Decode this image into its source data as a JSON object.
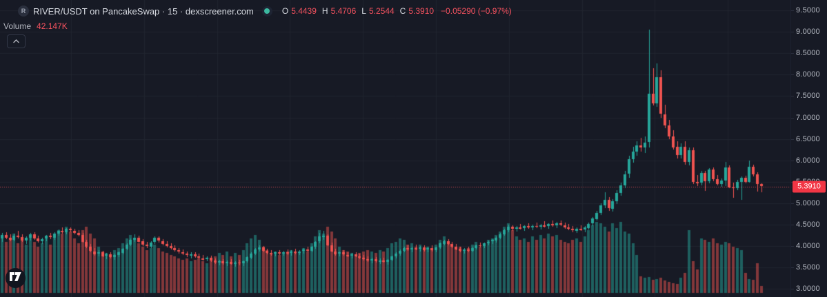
{
  "header": {
    "symbol_badge": "R",
    "title": "RIVER/USDT on PancakeSwap · 15 · dexscreener.com",
    "ohlc": {
      "open_label": "O",
      "open": "5.4439",
      "high_label": "H",
      "high": "5.4706",
      "low_label": "L",
      "low": "5.2544",
      "close_label": "C",
      "close": "5.3910",
      "change": "−0.05290 (−0.97%)"
    },
    "volume_label": "Volume",
    "volume_value": "42.147K"
  },
  "price_axis": {
    "last_price_label": "5.3910"
  },
  "colors": {
    "background": "#171a25",
    "grid": "#20242f",
    "up": "#26a69a",
    "down": "#ef5350",
    "axis_text": "#b6bac3",
    "value_red": "#f7525f",
    "price_label_bg": "#f23645",
    "price_line": "#c94a52"
  },
  "chart_data": {
    "type": "candlestick",
    "title": "RIVER/USDT on PancakeSwap · 15 · dexscreener.com",
    "interval_minutes": 15,
    "y_axis_ticks": [
      9.5,
      9.0,
      8.5,
      8.0,
      7.5,
      7.0,
      6.5,
      6.0,
      5.5,
      5.0,
      4.5,
      4.0,
      3.5,
      3.0
    ],
    "price_line_value": 5.391,
    "last_volume_k": 42.147,
    "volume_unit": "K",
    "candle_columns": [
      "open",
      "high",
      "low",
      "close",
      "volume_k"
    ],
    "candles": [
      [
        4.18,
        4.3,
        4.1,
        4.26,
        340
      ],
      [
        4.26,
        4.33,
        4.17,
        4.2,
        310
      ],
      [
        4.2,
        4.27,
        4.12,
        4.15,
        330
      ],
      [
        4.15,
        4.29,
        4.11,
        4.25,
        360
      ],
      [
        4.25,
        4.35,
        4.18,
        4.21,
        300
      ],
      [
        4.21,
        4.28,
        4.1,
        4.13,
        320
      ],
      [
        4.13,
        4.22,
        4.05,
        4.19,
        290
      ],
      [
        4.19,
        4.31,
        4.13,
        4.27,
        350
      ],
      [
        4.27,
        4.33,
        4.15,
        4.18,
        310
      ],
      [
        4.18,
        4.25,
        4.08,
        4.12,
        280
      ],
      [
        4.12,
        4.2,
        4.05,
        4.17,
        300
      ],
      [
        4.17,
        4.26,
        4.12,
        4.24,
        330
      ],
      [
        4.24,
        4.3,
        4.16,
        4.2,
        290
      ],
      [
        4.2,
        4.32,
        4.15,
        4.29,
        340
      ],
      [
        4.29,
        4.38,
        4.24,
        4.35,
        380
      ],
      [
        4.35,
        4.44,
        4.29,
        4.32,
        360
      ],
      [
        4.32,
        4.42,
        4.27,
        4.4,
        400
      ],
      [
        4.4,
        4.44,
        4.33,
        4.36,
        370
      ],
      [
        4.36,
        4.41,
        4.28,
        4.31,
        330
      ],
      [
        4.31,
        4.37,
        4.22,
        4.26,
        300
      ],
      [
        4.26,
        4.3,
        4.08,
        4.1,
        380
      ],
      [
        4.1,
        4.15,
        3.95,
        3.98,
        400
      ],
      [
        3.98,
        4.05,
        3.85,
        3.88,
        360
      ],
      [
        3.88,
        3.95,
        3.78,
        3.82,
        330
      ],
      [
        3.82,
        3.9,
        3.76,
        3.86,
        280
      ],
      [
        3.86,
        3.89,
        3.74,
        3.77,
        250
      ],
      [
        3.77,
        3.84,
        3.7,
        3.81,
        240
      ],
      [
        3.81,
        3.86,
        3.72,
        3.74,
        230
      ],
      [
        3.74,
        3.82,
        3.68,
        3.79,
        260
      ],
      [
        3.79,
        3.88,
        3.74,
        3.85,
        270
      ],
      [
        3.85,
        3.96,
        3.81,
        3.94,
        300
      ],
      [
        3.94,
        4.06,
        3.9,
        4.04,
        330
      ],
      [
        4.04,
        4.18,
        4.0,
        4.15,
        350
      ],
      [
        4.15,
        4.27,
        4.1,
        4.2,
        320
      ],
      [
        4.2,
        4.24,
        4.08,
        4.11,
        300
      ],
      [
        4.11,
        4.16,
        4.0,
        4.03,
        280
      ],
      [
        4.03,
        4.1,
        3.96,
        3.99,
        260
      ],
      [
        3.99,
        4.12,
        3.95,
        4.09,
        270
      ],
      [
        4.09,
        4.22,
        4.05,
        4.19,
        290
      ],
      [
        4.19,
        4.23,
        4.08,
        4.12,
        270
      ],
      [
        4.12,
        4.17,
        4.02,
        4.05,
        250
      ],
      [
        4.05,
        4.11,
        3.97,
        4.0,
        240
      ],
      [
        4.0,
        4.06,
        3.92,
        3.95,
        230
      ],
      [
        3.95,
        4.01,
        3.87,
        3.9,
        220
      ],
      [
        3.9,
        3.96,
        3.83,
        3.86,
        210
      ],
      [
        3.86,
        3.92,
        3.79,
        3.82,
        200
      ],
      [
        3.82,
        3.88,
        3.75,
        3.78,
        210
      ],
      [
        3.78,
        3.85,
        3.72,
        3.81,
        190
      ],
      [
        3.81,
        3.86,
        3.73,
        3.76,
        200
      ],
      [
        3.76,
        3.82,
        3.69,
        3.72,
        210
      ],
      [
        3.72,
        3.79,
        3.66,
        3.69,
        190
      ],
      [
        3.69,
        3.76,
        3.64,
        3.73,
        180
      ],
      [
        3.73,
        3.77,
        3.63,
        3.66,
        200
      ],
      [
        3.66,
        3.72,
        3.58,
        3.61,
        220
      ],
      [
        3.61,
        3.68,
        3.55,
        3.64,
        240
      ],
      [
        3.64,
        3.7,
        3.57,
        3.59,
        230
      ],
      [
        3.59,
        3.66,
        3.53,
        3.63,
        250
      ],
      [
        3.63,
        3.69,
        3.56,
        3.58,
        220
      ],
      [
        3.58,
        3.65,
        3.52,
        3.62,
        240
      ],
      [
        3.62,
        3.68,
        3.55,
        3.6,
        230
      ],
      [
        3.6,
        3.67,
        3.54,
        3.65,
        260
      ],
      [
        3.65,
        3.76,
        3.61,
        3.74,
        300
      ],
      [
        3.74,
        3.85,
        3.7,
        3.83,
        330
      ],
      [
        3.83,
        3.95,
        3.79,
        3.92,
        350
      ],
      [
        3.92,
        4.02,
        3.88,
        3.97,
        320
      ],
      [
        3.97,
        4.0,
        3.86,
        3.89,
        280
      ],
      [
        3.89,
        3.94,
        3.81,
        3.84,
        260
      ],
      [
        3.84,
        3.9,
        3.78,
        3.81,
        240
      ],
      [
        3.81,
        3.88,
        3.76,
        3.85,
        250
      ],
      [
        3.85,
        3.91,
        3.79,
        3.82,
        230
      ],
      [
        3.82,
        3.89,
        3.77,
        3.86,
        240
      ],
      [
        3.86,
        3.92,
        3.8,
        3.83,
        250
      ],
      [
        3.83,
        3.9,
        3.78,
        3.87,
        260
      ],
      [
        3.87,
        3.93,
        3.81,
        3.84,
        240
      ],
      [
        3.84,
        3.91,
        3.79,
        3.88,
        250
      ],
      [
        3.88,
        3.95,
        3.83,
        3.92,
        270
      ],
      [
        3.92,
        3.98,
        3.86,
        3.89,
        250
      ],
      [
        3.89,
        4.0,
        3.85,
        3.98,
        300
      ],
      [
        3.98,
        4.12,
        3.94,
        4.1,
        340
      ],
      [
        4.1,
        4.3,
        4.06,
        4.22,
        380
      ],
      [
        4.22,
        4.35,
        4.15,
        4.25,
        360
      ],
      [
        4.25,
        4.28,
        4.0,
        4.02,
        400
      ],
      [
        4.02,
        4.08,
        3.85,
        3.88,
        370
      ],
      [
        3.88,
        3.94,
        3.78,
        3.81,
        330
      ],
      [
        3.81,
        3.88,
        3.76,
        3.85,
        280
      ],
      [
        3.85,
        3.9,
        3.78,
        3.8,
        260
      ],
      [
        3.8,
        3.86,
        3.74,
        3.77,
        250
      ],
      [
        3.77,
        3.84,
        3.72,
        3.81,
        240
      ],
      [
        3.81,
        3.86,
        3.74,
        3.76,
        230
      ],
      [
        3.76,
        3.82,
        3.7,
        3.73,
        240
      ],
      [
        3.73,
        3.8,
        3.67,
        3.7,
        250
      ],
      [
        3.7,
        3.76,
        3.63,
        3.66,
        260
      ],
      [
        3.66,
        3.73,
        3.6,
        3.69,
        250
      ],
      [
        3.69,
        3.74,
        3.62,
        3.64,
        240
      ],
      [
        3.64,
        3.71,
        3.58,
        3.67,
        260
      ],
      [
        3.67,
        3.73,
        3.61,
        3.63,
        250
      ],
      [
        3.63,
        3.7,
        3.57,
        3.68,
        270
      ],
      [
        3.68,
        3.78,
        3.64,
        3.76,
        300
      ],
      [
        3.76,
        3.85,
        3.72,
        3.82,
        310
      ],
      [
        3.82,
        3.92,
        3.78,
        3.89,
        330
      ],
      [
        3.89,
        3.99,
        3.85,
        3.95,
        320
      ],
      [
        3.95,
        4.02,
        3.89,
        3.92,
        290
      ],
      [
        3.92,
        3.99,
        3.86,
        3.96,
        300
      ],
      [
        3.96,
        4.03,
        3.9,
        3.93,
        280
      ],
      [
        3.93,
        4.0,
        3.87,
        3.97,
        290
      ],
      [
        3.97,
        4.02,
        3.88,
        3.91,
        270
      ],
      [
        3.91,
        3.98,
        3.85,
        3.95,
        280
      ],
      [
        3.95,
        4.01,
        3.88,
        3.9,
        260
      ],
      [
        3.9,
        3.99,
        3.86,
        3.97,
        290
      ],
      [
        3.97,
        4.08,
        3.93,
        4.06,
        320
      ],
      [
        4.06,
        4.15,
        4.01,
        4.12,
        340
      ],
      [
        4.12,
        4.16,
        4.02,
        4.05,
        310
      ],
      [
        4.05,
        4.1,
        3.96,
        3.99,
        290
      ],
      [
        3.99,
        4.05,
        3.9,
        3.93,
        270
      ],
      [
        3.93,
        3.99,
        3.85,
        3.88,
        280
      ],
      [
        3.88,
        3.95,
        3.82,
        3.92,
        260
      ],
      [
        3.92,
        3.99,
        3.86,
        3.89,
        270
      ],
      [
        3.89,
        3.98,
        3.85,
        3.96,
        290
      ],
      [
        3.96,
        4.04,
        3.92,
        4.02,
        310
      ],
      [
        4.02,
        4.09,
        3.97,
        4.0,
        280
      ],
      [
        4.0,
        4.08,
        3.95,
        4.06,
        300
      ],
      [
        4.06,
        4.13,
        4.01,
        4.1,
        320
      ],
      [
        4.1,
        4.17,
        4.05,
        4.14,
        330
      ],
      [
        4.14,
        4.22,
        4.09,
        4.2,
        350
      ],
      [
        4.2,
        4.3,
        4.16,
        4.28,
        370
      ],
      [
        4.28,
        4.4,
        4.24,
        4.37,
        400
      ],
      [
        4.37,
        4.5,
        4.33,
        4.45,
        420
      ],
      [
        4.45,
        4.49,
        4.36,
        4.4,
        380
      ],
      [
        4.4,
        4.47,
        4.34,
        4.44,
        340
      ],
      [
        4.44,
        4.52,
        4.38,
        4.41,
        320
      ],
      [
        4.41,
        4.49,
        4.36,
        4.46,
        330
      ],
      [
        4.46,
        4.53,
        4.4,
        4.43,
        310
      ],
      [
        4.43,
        4.5,
        4.37,
        4.47,
        340
      ],
      [
        4.47,
        4.55,
        4.42,
        4.45,
        320
      ],
      [
        4.45,
        4.52,
        4.39,
        4.49,
        350
      ],
      [
        4.49,
        4.58,
        4.44,
        4.46,
        330
      ],
      [
        4.46,
        4.54,
        4.41,
        4.51,
        360
      ],
      [
        4.51,
        4.6,
        4.45,
        4.48,
        340
      ],
      [
        4.48,
        4.56,
        4.42,
        4.53,
        350
      ],
      [
        4.53,
        4.59,
        4.46,
        4.49,
        320
      ],
      [
        4.49,
        4.55,
        4.41,
        4.44,
        310
      ],
      [
        4.44,
        4.51,
        4.37,
        4.4,
        300
      ],
      [
        4.4,
        4.47,
        4.33,
        4.36,
        320
      ],
      [
        4.36,
        4.44,
        4.3,
        4.41,
        330
      ],
      [
        4.41,
        4.48,
        4.35,
        4.38,
        310
      ],
      [
        4.38,
        4.46,
        4.32,
        4.43,
        340
      ],
      [
        4.43,
        4.55,
        4.38,
        4.52,
        380
      ],
      [
        4.52,
        4.68,
        4.47,
        4.64,
        410
      ],
      [
        4.64,
        4.82,
        4.59,
        4.78,
        430
      ],
      [
        4.78,
        5.0,
        4.72,
        4.95,
        420
      ],
      [
        4.95,
        5.26,
        4.88,
        5.08,
        400
      ],
      [
        5.08,
        5.15,
        4.82,
        4.88,
        370
      ],
      [
        4.88,
        5.1,
        4.8,
        5.05,
        420
      ],
      [
        5.05,
        5.3,
        4.98,
        5.24,
        390
      ],
      [
        5.24,
        5.48,
        5.18,
        5.42,
        430
      ],
      [
        5.42,
        5.75,
        5.36,
        5.68,
        370
      ],
      [
        5.68,
        6.1,
        5.6,
        6.02,
        360
      ],
      [
        6.02,
        6.32,
        5.95,
        6.2,
        300
      ],
      [
        6.2,
        6.45,
        6.1,
        6.35,
        230
      ],
      [
        6.35,
        6.52,
        6.2,
        6.3,
        100
      ],
      [
        6.3,
        6.55,
        6.18,
        6.42,
        90
      ],
      [
        6.42,
        9.05,
        6.3,
        7.55,
        95
      ],
      [
        7.55,
        8.15,
        7.28,
        7.33,
        80
      ],
      [
        7.33,
        8.26,
        7.25,
        7.94,
        85
      ],
      [
        7.94,
        8.1,
        7.0,
        7.08,
        90
      ],
      [
        7.08,
        7.3,
        6.75,
        6.82,
        75
      ],
      [
        6.82,
        6.95,
        6.5,
        6.56,
        65
      ],
      [
        6.56,
        6.7,
        6.25,
        6.31,
        60
      ],
      [
        6.31,
        6.45,
        6.05,
        6.12,
        55
      ],
      [
        6.12,
        6.4,
        6.05,
        6.32,
        90
      ],
      [
        6.32,
        6.45,
        5.9,
        5.96,
        120
      ],
      [
        5.96,
        6.3,
        5.88,
        6.24,
        380
      ],
      [
        6.24,
        6.3,
        5.45,
        5.5,
        190
      ],
      [
        5.5,
        5.65,
        5.4,
        5.47,
        140
      ],
      [
        5.47,
        5.75,
        5.42,
        5.7,
        330
      ],
      [
        5.7,
        5.76,
        5.29,
        5.51,
        320
      ],
      [
        5.51,
        5.82,
        5.46,
        5.78,
        310
      ],
      [
        5.78,
        5.84,
        5.52,
        5.56,
        330
      ],
      [
        5.56,
        5.66,
        5.42,
        5.45,
        300
      ],
      [
        5.45,
        5.58,
        5.38,
        5.53,
        290
      ],
      [
        5.53,
        5.96,
        5.4,
        5.83,
        310
      ],
      [
        5.83,
        5.88,
        5.35,
        5.37,
        300
      ],
      [
        5.37,
        5.48,
        5.13,
        5.35,
        280
      ],
      [
        5.35,
        5.54,
        5.3,
        5.5,
        270
      ],
      [
        5.5,
        5.62,
        5.08,
        5.59,
        260
      ],
      [
        5.59,
        5.64,
        5.46,
        5.5,
        120
      ],
      [
        5.5,
        5.99,
        5.48,
        5.85,
        85
      ],
      [
        5.85,
        5.9,
        5.63,
        5.67,
        80
      ],
      [
        5.67,
        5.72,
        5.27,
        5.44,
        180
      ],
      [
        5.4439,
        5.4706,
        5.2544,
        5.391,
        42.147
      ]
    ]
  }
}
